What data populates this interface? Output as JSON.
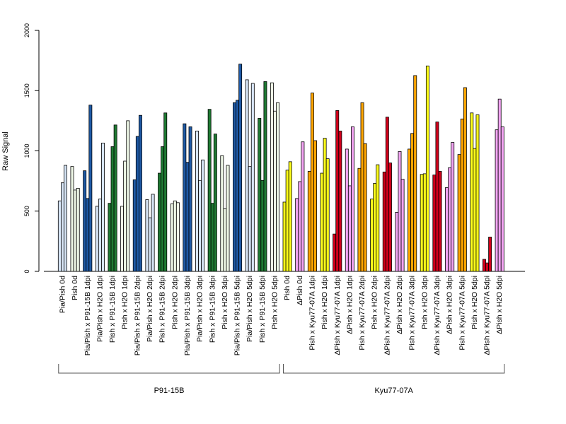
{
  "chart_data": {
    "type": "bar",
    "title": "",
    "xlabel": "",
    "ylabel": "Raw Signal",
    "ylim": [
      0,
      2000
    ],
    "yticks": [
      0,
      500,
      1000,
      1500,
      2000
    ],
    "grid": false,
    "legend": "none",
    "colors": {
      "light_blue": "#d6e4f5",
      "dark_blue": "#1f5aa6",
      "light_green": "#eef7e6",
      "dark_green": "#1f7a33",
      "yellow": "#ffff1a",
      "pink": "#f2a4f2",
      "orange": "#ffa500",
      "red": "#d0001b"
    },
    "groups": [
      {
        "label": "Pia/Pish 0d",
        "color": "light_blue",
        "values": [
          585,
          735,
          880
        ]
      },
      {
        "label": "Pish 0d",
        "color": "light_green",
        "values": [
          870,
          675,
          690
        ]
      },
      {
        "label": "Pia/Pish x P91-15B 1dpi",
        "color": "dark_blue",
        "values": [
          835,
          605,
          1380
        ]
      },
      {
        "label": "Pia/Pish x H2O 1dpi",
        "color": "light_blue",
        "values": [
          540,
          600,
          1065
        ]
      },
      {
        "label": "Pish x P91-15B 1dpi",
        "color": "dark_green",
        "values": [
          565,
          1035,
          1215
        ]
      },
      {
        "label": "Pish x H2O 1dpi",
        "color": "light_green",
        "values": [
          540,
          915,
          1250
        ]
      },
      {
        "label": "Pia/Pish x P91-15B 2dpi",
        "color": "dark_blue",
        "values": [
          760,
          1120,
          1295
        ]
      },
      {
        "label": "Pia/Pish x H2O 2dpi",
        "color": "light_blue",
        "values": [
          595,
          445,
          640
        ]
      },
      {
        "label": "Pish x P91-15B 2dpi",
        "color": "dark_green",
        "values": [
          815,
          1035,
          1315
        ]
      },
      {
        "label": "Pish x H2O 2dpi",
        "color": "light_green",
        "values": [
          560,
          585,
          570
        ]
      },
      {
        "label": "Pia/Pish x P91-15B 3dpi",
        "color": "dark_blue",
        "values": [
          1225,
          905,
          1200
        ]
      },
      {
        "label": "Pia/Pish x H2O 3dpi",
        "color": "light_blue",
        "values": [
          1165,
          755,
          925
        ]
      },
      {
        "label": "Pish x P91-15B 3dpi",
        "color": "dark_green",
        "values": [
          1345,
          565,
          1140
        ]
      },
      {
        "label": "Pish x H2O 3dpi",
        "color": "light_green",
        "values": [
          960,
          520,
          880
        ]
      },
      {
        "label": "Pia/Pish x P91-15B 5dpi",
        "color": "dark_blue",
        "values": [
          1400,
          1420,
          1720
        ]
      },
      {
        "label": "Pia/Pish x H2O 5dpi",
        "color": "light_blue",
        "values": [
          1590,
          870,
          1560
        ]
      },
      {
        "label": "Pish x P91-15B 5dpi",
        "color": "dark_green",
        "values": [
          1270,
          755,
          1575
        ]
      },
      {
        "label": "Pish x H2O 5dpi",
        "color": "light_green",
        "values": [
          1565,
          1330,
          1400
        ]
      },
      {
        "label": "Pish 0d",
        "color": "yellow",
        "values": [
          575,
          840,
          910
        ]
      },
      {
        "label": "ΔPish 0d",
        "color": "pink",
        "values": [
          605,
          745,
          1075
        ]
      },
      {
        "label": "Pish x Kyu77-07A 1dpi",
        "color": "orange",
        "values": [
          830,
          1480,
          1085
        ]
      },
      {
        "label": "Pish x H2O 1dpi",
        "color": "yellow",
        "values": [
          815,
          1105,
          935
        ]
      },
      {
        "label": "ΔPish x Kyu77-07A 1dpi",
        "color": "red",
        "values": [
          310,
          1335,
          1165
        ]
      },
      {
        "label": "ΔPish x H2O 1dpi",
        "color": "pink",
        "values": [
          1015,
          710,
          1200
        ]
      },
      {
        "label": "Pish x Kyu77-07A 2dpi",
        "color": "orange",
        "values": [
          855,
          1400,
          1060
        ]
      },
      {
        "label": "Pish x H2O 2dpi",
        "color": "yellow",
        "values": [
          600,
          730,
          885
        ]
      },
      {
        "label": "ΔPish x Kyu77-07A 2dpi",
        "color": "red",
        "values": [
          825,
          1280,
          900
        ]
      },
      {
        "label": "ΔPish x H2O 2dpi",
        "color": "pink",
        "values": [
          490,
          995,
          765
        ]
      },
      {
        "label": "Pish x Kyu77-07A 3dpi",
        "color": "orange",
        "values": [
          1015,
          1145,
          1625
        ]
      },
      {
        "label": "Pish x H2O 3dpi",
        "color": "yellow",
        "values": [
          805,
          810,
          1705
        ]
      },
      {
        "label": "ΔPish x Kyu77-07A 3dpi",
        "color": "red",
        "values": [
          800,
          1240,
          830
        ]
      },
      {
        "label": "ΔPish x H2O 3dpi",
        "color": "pink",
        "values": [
          695,
          860,
          1070
        ]
      },
      {
        "label": "Pish x Kyu77-07A 5dpi",
        "color": "orange",
        "values": [
          970,
          1265,
          1525
        ]
      },
      {
        "label": "Pish x H2O 5dpi",
        "color": "yellow",
        "values": [
          1315,
          1020,
          1300
        ]
      },
      {
        "label": "ΔPish x Kyu77-07A 5dpi",
        "color": "red",
        "values": [
          100,
          70,
          285
        ]
      },
      {
        "label": "ΔPish x H2O 5dpi",
        "color": "pink",
        "values": [
          1175,
          1430,
          1200
        ]
      }
    ],
    "brackets": [
      {
        "label": "P91-15B",
        "from": 0,
        "to": 17
      },
      {
        "label": "Kyu77-07A",
        "from": 18,
        "to": 35
      }
    ]
  }
}
